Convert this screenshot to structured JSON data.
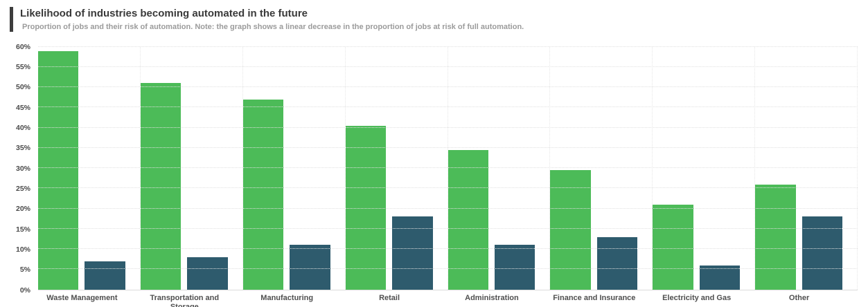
{
  "chart_data": {
    "type": "bar",
    "title": "Likelihood of industries becoming automated in the future",
    "subtitle": "Proportion of jobs and their risk of automation. Note: the graph shows a linear decrease in the proportion of jobs at risk of full automation.",
    "categories": [
      "Waste Management",
      "Transportation and Storage",
      "Manufacturing",
      "Retail",
      "Administration",
      "Finance and Insurance",
      "Electricity and Gas",
      "Other"
    ],
    "series": [
      {
        "name": "green",
        "color": "#4cbb58",
        "values": [
          59,
          51,
          47,
          40.5,
          34.5,
          29.5,
          21,
          26
        ]
      },
      {
        "name": "dark-teal",
        "color": "#2e5b6d",
        "values": [
          7,
          8,
          11,
          18,
          11,
          13,
          6,
          18
        ]
      }
    ],
    "xlabel": "",
    "ylabel": "",
    "ylim": [
      0,
      60
    ],
    "yticks": [
      0,
      5,
      10,
      15,
      20,
      25,
      30,
      35,
      40,
      45,
      50,
      55,
      60
    ],
    "ytick_suffix": "%",
    "grid": "horizontal and vertical dotted gridlines",
    "legend": "none"
  },
  "colors": {
    "accent_bar": "#3d3d3d",
    "title_text": "#3a3a3a",
    "subtitle_text": "#9b9b9b",
    "gridline": "#e0e0e0",
    "axis_label": "#4a4a4a"
  }
}
